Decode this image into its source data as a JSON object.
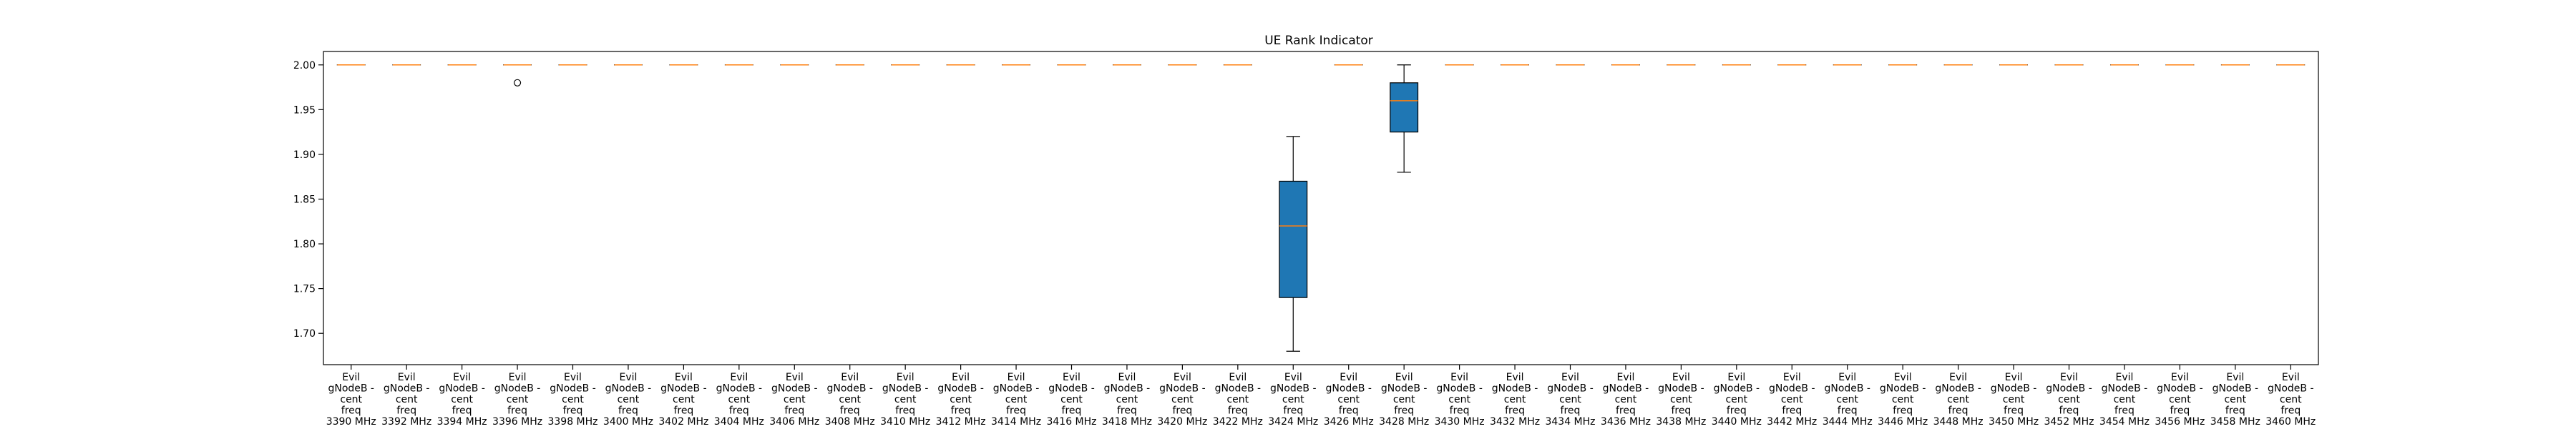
{
  "chart_data": {
    "type": "boxplot",
    "title": "UE Rank Indicator",
    "xlabel": "",
    "ylabel": "",
    "ylim": [
      1.665,
      2.015
    ],
    "yticks": [
      1.7,
      1.75,
      1.8,
      1.85,
      1.9,
      1.95,
      2.0
    ],
    "ytick_labels": [
      "1.70",
      "1.75",
      "1.80",
      "1.85",
      "1.90",
      "1.95",
      "2.00"
    ],
    "grid": false,
    "legend": "none",
    "colors": {
      "box_fill": "#1f77b4",
      "median": "#ff7f0e",
      "frame": "#000000"
    },
    "categories": [
      "Evil gNodeB - cent freq 3390 MHz",
      "Evil gNodeB - cent freq 3392 MHz",
      "Evil gNodeB - cent freq 3394 MHz",
      "Evil gNodeB - cent freq 3396 MHz",
      "Evil gNodeB - cent freq 3398 MHz",
      "Evil gNodeB - cent freq 3400 MHz",
      "Evil gNodeB - cent freq 3402 MHz",
      "Evil gNodeB - cent freq 3404 MHz",
      "Evil gNodeB - cent freq 3406 MHz",
      "Evil gNodeB - cent freq 3408 MHz",
      "Evil gNodeB - cent freq 3410 MHz",
      "Evil gNodeB - cent freq 3412 MHz",
      "Evil gNodeB - cent freq 3414 MHz",
      "Evil gNodeB - cent freq 3416 MHz",
      "Evil gNodeB - cent freq 3418 MHz",
      "Evil gNodeB - cent freq 3420 MHz",
      "Evil gNodeB - cent freq 3422 MHz",
      "Evil gNodeB - cent freq 3424 MHz",
      "Evil gNodeB - cent freq 3426 MHz",
      "Evil gNodeB - cent freq 3428 MHz",
      "Evil gNodeB - cent freq 3430 MHz",
      "Evil gNodeB - cent freq 3432 MHz",
      "Evil gNodeB - cent freq 3434 MHz",
      "Evil gNodeB - cent freq 3436 MHz",
      "Evil gNodeB - cent freq 3438 MHz",
      "Evil gNodeB - cent freq 3440 MHz",
      "Evil gNodeB - cent freq 3442 MHz",
      "Evil gNodeB - cent freq 3444 MHz",
      "Evil gNodeB - cent freq 3446 MHz",
      "Evil gNodeB - cent freq 3448 MHz",
      "Evil gNodeB - cent freq 3450 MHz",
      "Evil gNodeB - cent freq 3452 MHz",
      "Evil gNodeB - cent freq 3454 MHz",
      "Evil gNodeB - cent freq 3456 MHz",
      "Evil gNodeB - cent freq 3458 MHz",
      "Evil gNodeB - cent freq 3460 MHz"
    ],
    "x_tick_lines": [
      [
        "Evil",
        "gNodeB -",
        "cent",
        "freq",
        "3390 MHz"
      ],
      [
        "Evil",
        "gNodeB -",
        "cent",
        "freq",
        "3392 MHz"
      ],
      [
        "Evil",
        "gNodeB -",
        "cent",
        "freq",
        "3394 MHz"
      ],
      [
        "Evil",
        "gNodeB -",
        "cent",
        "freq",
        "3396 MHz"
      ],
      [
        "Evil",
        "gNodeB -",
        "cent",
        "freq",
        "3398 MHz"
      ],
      [
        "Evil",
        "gNodeB -",
        "cent",
        "freq",
        "3400 MHz"
      ],
      [
        "Evil",
        "gNodeB -",
        "cent",
        "freq",
        "3402 MHz"
      ],
      [
        "Evil",
        "gNodeB -",
        "cent",
        "freq",
        "3404 MHz"
      ],
      [
        "Evil",
        "gNodeB -",
        "cent",
        "freq",
        "3406 MHz"
      ],
      [
        "Evil",
        "gNodeB -",
        "cent",
        "freq",
        "3408 MHz"
      ],
      [
        "Evil",
        "gNodeB -",
        "cent",
        "freq",
        "3410 MHz"
      ],
      [
        "Evil",
        "gNodeB -",
        "cent",
        "freq",
        "3412 MHz"
      ],
      [
        "Evil",
        "gNodeB -",
        "cent",
        "freq",
        "3414 MHz"
      ],
      [
        "Evil",
        "gNodeB -",
        "cent",
        "freq",
        "3416 MHz"
      ],
      [
        "Evil",
        "gNodeB -",
        "cent",
        "freq",
        "3418 MHz"
      ],
      [
        "Evil",
        "gNodeB -",
        "cent",
        "freq",
        "3420 MHz"
      ],
      [
        "Evil",
        "gNodeB -",
        "cent",
        "freq",
        "3422 MHz"
      ],
      [
        "Evil",
        "gNodeB -",
        "cent",
        "freq",
        "3424 MHz"
      ],
      [
        "Evil",
        "gNodeB -",
        "cent",
        "freq",
        "3426 MHz"
      ],
      [
        "Evil",
        "gNodeB -",
        "cent",
        "freq",
        "3428 MHz"
      ],
      [
        "Evil",
        "gNodeB -",
        "cent",
        "freq",
        "3430 MHz"
      ],
      [
        "Evil",
        "gNodeB -",
        "cent",
        "freq",
        "3432 MHz"
      ],
      [
        "Evil",
        "gNodeB -",
        "cent",
        "freq",
        "3434 MHz"
      ],
      [
        "Evil",
        "gNodeB -",
        "cent",
        "freq",
        "3436 MHz"
      ],
      [
        "Evil",
        "gNodeB -",
        "cent",
        "freq",
        "3438 MHz"
      ],
      [
        "Evil",
        "gNodeB -",
        "cent",
        "freq",
        "3440 MHz"
      ],
      [
        "Evil",
        "gNodeB -",
        "cent",
        "freq",
        "3442 MHz"
      ],
      [
        "Evil",
        "gNodeB -",
        "cent",
        "freq",
        "3444 MHz"
      ],
      [
        "Evil",
        "gNodeB -",
        "cent",
        "freq",
        "3446 MHz"
      ],
      [
        "Evil",
        "gNodeB -",
        "cent",
        "freq",
        "3448 MHz"
      ],
      [
        "Evil",
        "gNodeB -",
        "cent",
        "freq",
        "3450 MHz"
      ],
      [
        "Evil",
        "gNodeB -",
        "cent",
        "freq",
        "3452 MHz"
      ],
      [
        "Evil",
        "gNodeB -",
        "cent",
        "freq",
        "3454 MHz"
      ],
      [
        "Evil",
        "gNodeB -",
        "cent",
        "freq",
        "3456 MHz"
      ],
      [
        "Evil",
        "gNodeB -",
        "cent",
        "freq",
        "3458 MHz"
      ],
      [
        "Evil",
        "gNodeB -",
        "cent",
        "freq",
        "3460 MHz"
      ]
    ],
    "boxes": [
      {
        "min": 2.0,
        "q1": 2.0,
        "median": 2.0,
        "q3": 2.0,
        "max": 2.0,
        "outliers": []
      },
      {
        "min": 2.0,
        "q1": 2.0,
        "median": 2.0,
        "q3": 2.0,
        "max": 2.0,
        "outliers": []
      },
      {
        "min": 2.0,
        "q1": 2.0,
        "median": 2.0,
        "q3": 2.0,
        "max": 2.0,
        "outliers": []
      },
      {
        "min": 2.0,
        "q1": 2.0,
        "median": 2.0,
        "q3": 2.0,
        "max": 2.0,
        "outliers": [
          1.98
        ]
      },
      {
        "min": 2.0,
        "q1": 2.0,
        "median": 2.0,
        "q3": 2.0,
        "max": 2.0,
        "outliers": []
      },
      {
        "min": 2.0,
        "q1": 2.0,
        "median": 2.0,
        "q3": 2.0,
        "max": 2.0,
        "outliers": []
      },
      {
        "min": 2.0,
        "q1": 2.0,
        "median": 2.0,
        "q3": 2.0,
        "max": 2.0,
        "outliers": []
      },
      {
        "min": 2.0,
        "q1": 2.0,
        "median": 2.0,
        "q3": 2.0,
        "max": 2.0,
        "outliers": []
      },
      {
        "min": 2.0,
        "q1": 2.0,
        "median": 2.0,
        "q3": 2.0,
        "max": 2.0,
        "outliers": []
      },
      {
        "min": 2.0,
        "q1": 2.0,
        "median": 2.0,
        "q3": 2.0,
        "max": 2.0,
        "outliers": []
      },
      {
        "min": 2.0,
        "q1": 2.0,
        "median": 2.0,
        "q3": 2.0,
        "max": 2.0,
        "outliers": []
      },
      {
        "min": 2.0,
        "q1": 2.0,
        "median": 2.0,
        "q3": 2.0,
        "max": 2.0,
        "outliers": []
      },
      {
        "min": 2.0,
        "q1": 2.0,
        "median": 2.0,
        "q3": 2.0,
        "max": 2.0,
        "outliers": []
      },
      {
        "min": 2.0,
        "q1": 2.0,
        "median": 2.0,
        "q3": 2.0,
        "max": 2.0,
        "outliers": []
      },
      {
        "min": 2.0,
        "q1": 2.0,
        "median": 2.0,
        "q3": 2.0,
        "max": 2.0,
        "outliers": []
      },
      {
        "min": 2.0,
        "q1": 2.0,
        "median": 2.0,
        "q3": 2.0,
        "max": 2.0,
        "outliers": []
      },
      {
        "min": 2.0,
        "q1": 2.0,
        "median": 2.0,
        "q3": 2.0,
        "max": 2.0,
        "outliers": []
      },
      {
        "min": 1.68,
        "q1": 1.74,
        "median": 1.82,
        "q3": 1.87,
        "max": 1.92,
        "outliers": []
      },
      {
        "min": 2.0,
        "q1": 2.0,
        "median": 2.0,
        "q3": 2.0,
        "max": 2.0,
        "outliers": []
      },
      {
        "min": 1.88,
        "q1": 1.925,
        "median": 1.96,
        "q3": 1.98,
        "max": 2.0,
        "outliers": []
      },
      {
        "min": 2.0,
        "q1": 2.0,
        "median": 2.0,
        "q3": 2.0,
        "max": 2.0,
        "outliers": []
      },
      {
        "min": 2.0,
        "q1": 2.0,
        "median": 2.0,
        "q3": 2.0,
        "max": 2.0,
        "outliers": []
      },
      {
        "min": 2.0,
        "q1": 2.0,
        "median": 2.0,
        "q3": 2.0,
        "max": 2.0,
        "outliers": []
      },
      {
        "min": 2.0,
        "q1": 2.0,
        "median": 2.0,
        "q3": 2.0,
        "max": 2.0,
        "outliers": []
      },
      {
        "min": 2.0,
        "q1": 2.0,
        "median": 2.0,
        "q3": 2.0,
        "max": 2.0,
        "outliers": []
      },
      {
        "min": 2.0,
        "q1": 2.0,
        "median": 2.0,
        "q3": 2.0,
        "max": 2.0,
        "outliers": []
      },
      {
        "min": 2.0,
        "q1": 2.0,
        "median": 2.0,
        "q3": 2.0,
        "max": 2.0,
        "outliers": []
      },
      {
        "min": 2.0,
        "q1": 2.0,
        "median": 2.0,
        "q3": 2.0,
        "max": 2.0,
        "outliers": []
      },
      {
        "min": 2.0,
        "q1": 2.0,
        "median": 2.0,
        "q3": 2.0,
        "max": 2.0,
        "outliers": []
      },
      {
        "min": 2.0,
        "q1": 2.0,
        "median": 2.0,
        "q3": 2.0,
        "max": 2.0,
        "outliers": []
      },
      {
        "min": 2.0,
        "q1": 2.0,
        "median": 2.0,
        "q3": 2.0,
        "max": 2.0,
        "outliers": []
      },
      {
        "min": 2.0,
        "q1": 2.0,
        "median": 2.0,
        "q3": 2.0,
        "max": 2.0,
        "outliers": []
      },
      {
        "min": 2.0,
        "q1": 2.0,
        "median": 2.0,
        "q3": 2.0,
        "max": 2.0,
        "outliers": []
      },
      {
        "min": 2.0,
        "q1": 2.0,
        "median": 2.0,
        "q3": 2.0,
        "max": 2.0,
        "outliers": []
      },
      {
        "min": 2.0,
        "q1": 2.0,
        "median": 2.0,
        "q3": 2.0,
        "max": 2.0,
        "outliers": []
      },
      {
        "min": 2.0,
        "q1": 2.0,
        "median": 2.0,
        "q3": 2.0,
        "max": 2.0,
        "outliers": []
      }
    ]
  }
}
